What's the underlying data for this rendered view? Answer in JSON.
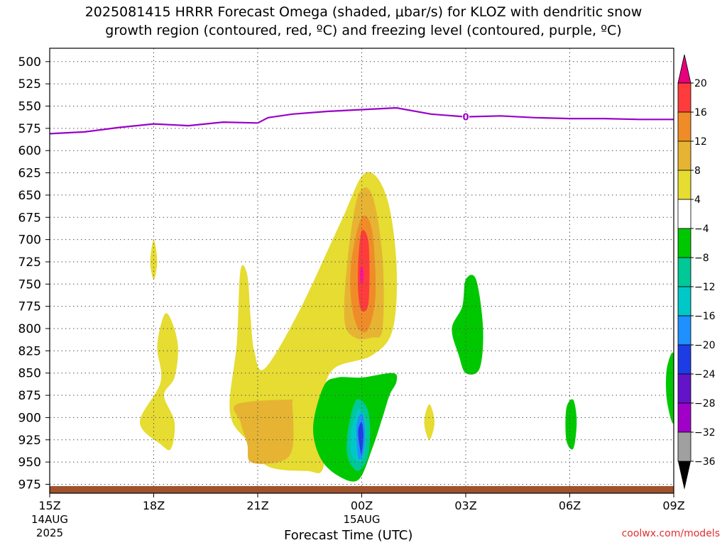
{
  "title": {
    "line1": "2025081415 HRRR Forecast Omega (shaded, μbar/s) for KLOZ with dendritic snow",
    "line2": "growth region (contoured, red, ºC) and freezing level (contoured, purple, ºC)"
  },
  "watermark": "coolwx.com/models",
  "chart_data": {
    "type": "heatmap",
    "xlabel": "Forecast Time (UTC)",
    "ylabel": "",
    "x_range_hours": [
      0,
      18
    ],
    "y_range_hpa": [
      485,
      985
    ],
    "x_ticks": [
      {
        "h": 0,
        "label": "15Z",
        "sub1": "14AUG",
        "sub2": "2025"
      },
      {
        "h": 3,
        "label": "18Z",
        "sub1": "",
        "sub2": ""
      },
      {
        "h": 6,
        "label": "21Z",
        "sub1": "",
        "sub2": ""
      },
      {
        "h": 9,
        "label": "00Z",
        "sub1": "15AUG",
        "sub2": ""
      },
      {
        "h": 12,
        "label": "03Z",
        "sub1": "",
        "sub2": ""
      },
      {
        "h": 15,
        "label": "06Z",
        "sub1": "",
        "sub2": ""
      },
      {
        "h": 18,
        "label": "09Z",
        "sub1": "",
        "sub2": ""
      }
    ],
    "y_ticks": [
      500,
      525,
      550,
      575,
      600,
      625,
      650,
      675,
      700,
      725,
      750,
      775,
      800,
      825,
      850,
      875,
      900,
      925,
      950,
      975
    ],
    "freezing_level": {
      "label": "0",
      "color": "#9a00c8",
      "label_h": 12.0,
      "points": [
        [
          0,
          581
        ],
        [
          1,
          579
        ],
        [
          2,
          574
        ],
        [
          3,
          570
        ],
        [
          4,
          572
        ],
        [
          5,
          568
        ],
        [
          6,
          569
        ],
        [
          6.3,
          563
        ],
        [
          7,
          559
        ],
        [
          8,
          556
        ],
        [
          9,
          554
        ],
        [
          10,
          552
        ],
        [
          11,
          559
        ],
        [
          12,
          562
        ],
        [
          13,
          561
        ],
        [
          14,
          563
        ],
        [
          15,
          564
        ],
        [
          16,
          564
        ],
        [
          17,
          565
        ],
        [
          18,
          565
        ]
      ]
    },
    "ground": {
      "color": "#a0522d",
      "top_hpa": 977
    },
    "colorbar": {
      "levels": [
        {
          "label": "20",
          "color": "#ff1493"
        },
        {
          "label": "16",
          "color": "#ff3c3c"
        },
        {
          "label": "12",
          "color": "#f08c28"
        },
        {
          "label": "8",
          "color": "#e6b432"
        },
        {
          "label": "4",
          "color": "#e6dc32"
        },
        {
          "label": "−4",
          "color": "#ffffff"
        },
        {
          "label": "−8",
          "color": "#00c800"
        },
        {
          "label": "−12",
          "color": "#00c896"
        },
        {
          "label": "−16",
          "color": "#00c8c8"
        },
        {
          "label": "−20",
          "color": "#1e90ff"
        },
        {
          "label": "−24",
          "color": "#1e3ce6"
        },
        {
          "label": "−28",
          "color": "#6414c8"
        },
        {
          "label": "−32",
          "color": "#a000c8"
        },
        {
          "label": "−36",
          "color": "#a0a0a0"
        }
      ],
      "top_arrow_color": "#e6007e",
      "bottom_arrow_color": "#000000"
    },
    "regions": [
      {
        "value": 4,
        "color": "#e6dc32",
        "points": [
          [
            6.2,
            845
          ],
          [
            7.2,
            780
          ],
          [
            8.4,
            680
          ],
          [
            9.1,
            625
          ],
          [
            9.7,
            650
          ],
          [
            10.0,
            725
          ],
          [
            9.9,
            800
          ],
          [
            9.3,
            830
          ],
          [
            8.2,
            845
          ],
          [
            7.9,
            880
          ],
          [
            7.9,
            955
          ],
          [
            7.4,
            960
          ],
          [
            6.3,
            955
          ],
          [
            5.8,
            930
          ],
          [
            5.2,
            895
          ],
          [
            5.4,
            815
          ],
          [
            5.5,
            735
          ],
          [
            5.7,
            740
          ],
          [
            5.8,
            790
          ],
          [
            5.9,
            825
          ]
        ]
      },
      {
        "value": 8,
        "color": "#e6b432",
        "points": [
          [
            8.6,
            720
          ],
          [
            8.9,
            650
          ],
          [
            9.3,
            650
          ],
          [
            9.6,
            720
          ],
          [
            9.6,
            800
          ],
          [
            9.3,
            810
          ],
          [
            8.8,
            810
          ],
          [
            8.5,
            790
          ]
        ]
      },
      {
        "value": 12,
        "color": "#f08c28",
        "points": [
          [
            8.7,
            725
          ],
          [
            9.0,
            675
          ],
          [
            9.3,
            690
          ],
          [
            9.4,
            760
          ],
          [
            9.2,
            800
          ],
          [
            8.9,
            800
          ],
          [
            8.7,
            770
          ]
        ]
      },
      {
        "value": 16,
        "color": "#ff3c3c",
        "points": [
          [
            8.9,
            725
          ],
          [
            9.0,
            690
          ],
          [
            9.2,
            705
          ],
          [
            9.2,
            770
          ],
          [
            9.0,
            780
          ],
          [
            8.9,
            760
          ]
        ]
      },
      {
        "value": 20,
        "color": "#ff1493",
        "points": [
          [
            8.95,
            735
          ],
          [
            9.0,
            730
          ],
          [
            9.05,
            735
          ],
          [
            9.05,
            745
          ],
          [
            9.0,
            750
          ],
          [
            8.95,
            745
          ]
        ]
      },
      {
        "value": 8,
        "color": "#e6b432",
        "points": [
          [
            5.4,
            885
          ],
          [
            6.9,
            880
          ],
          [
            7.0,
            885
          ],
          [
            7.0,
            935
          ],
          [
            6.6,
            950
          ],
          [
            5.8,
            950
          ],
          [
            5.7,
            930
          ],
          [
            5.5,
            905
          ]
        ]
      },
      {
        "value": 4,
        "color": "#e6dc32",
        "points": [
          [
            2.6,
            905
          ],
          [
            3.2,
            860
          ],
          [
            3.1,
            820
          ],
          [
            3.3,
            785
          ],
          [
            3.5,
            790
          ],
          [
            3.7,
            820
          ],
          [
            3.6,
            855
          ],
          [
            3.3,
            875
          ],
          [
            3.6,
            905
          ],
          [
            3.5,
            935
          ],
          [
            3.2,
            930
          ]
        ]
      },
      {
        "value": 4,
        "color": "#e6dc32",
        "points": [
          [
            2.9,
            725
          ],
          [
            3.0,
            700
          ],
          [
            3.1,
            725
          ],
          [
            3.0,
            745
          ]
        ]
      },
      {
        "value": 4,
        "color": "#e6dc32",
        "points": [
          [
            10.8,
            905
          ],
          [
            10.95,
            885
          ],
          [
            11.1,
            905
          ],
          [
            10.95,
            925
          ]
        ]
      },
      {
        "value": -4,
        "color": "#00c800",
        "points": [
          [
            7.6,
            910
          ],
          [
            7.9,
            865
          ],
          [
            8.3,
            855
          ],
          [
            9.0,
            855
          ],
          [
            9.9,
            850
          ],
          [
            10.0,
            860
          ],
          [
            9.8,
            875
          ],
          [
            9.6,
            900
          ],
          [
            9.3,
            935
          ],
          [
            8.9,
            970
          ],
          [
            8.3,
            965
          ],
          [
            7.8,
            945
          ]
        ]
      },
      {
        "value": -8,
        "color": "#00c896",
        "points": [
          [
            8.6,
            915
          ],
          [
            8.85,
            880
          ],
          [
            9.2,
            895
          ],
          [
            9.2,
            940
          ],
          [
            8.9,
            960
          ],
          [
            8.6,
            945
          ]
        ]
      },
      {
        "value": -12,
        "color": "#00c8c8",
        "points": [
          [
            8.7,
            915
          ],
          [
            8.9,
            890
          ],
          [
            9.1,
            905
          ],
          [
            9.1,
            935
          ],
          [
            8.95,
            950
          ],
          [
            8.7,
            940
          ]
        ]
      },
      {
        "value": -16,
        "color": "#1e90ff",
        "points": [
          [
            8.85,
            910
          ],
          [
            9.0,
            895
          ],
          [
            9.1,
            915
          ],
          [
            9.05,
            940
          ],
          [
            8.9,
            945
          ]
        ]
      },
      {
        "value": -20,
        "color": "#1e3ce6",
        "points": [
          [
            8.9,
            915
          ],
          [
            9.0,
            905
          ],
          [
            9.05,
            920
          ],
          [
            9.0,
            940
          ],
          [
            8.95,
            935
          ]
        ]
      },
      {
        "value": -4,
        "color": "#00c800",
        "points": [
          [
            11.9,
            775
          ],
          [
            12.0,
            745
          ],
          [
            12.3,
            745
          ],
          [
            12.5,
            800
          ],
          [
            12.4,
            845
          ],
          [
            12.0,
            850
          ],
          [
            11.8,
            830
          ],
          [
            11.6,
            800
          ]
        ]
      },
      {
        "value": -4,
        "color": "#00c800",
        "points": [
          [
            14.9,
            890
          ],
          [
            15.1,
            880
          ],
          [
            15.2,
            905
          ],
          [
            15.1,
            935
          ],
          [
            14.9,
            925
          ]
        ]
      },
      {
        "value": -4,
        "color": "#00c800",
        "points": [
          [
            18.0,
            830
          ],
          [
            18.0,
            905
          ],
          [
            17.8,
            880
          ],
          [
            17.8,
            845
          ]
        ]
      }
    ]
  }
}
